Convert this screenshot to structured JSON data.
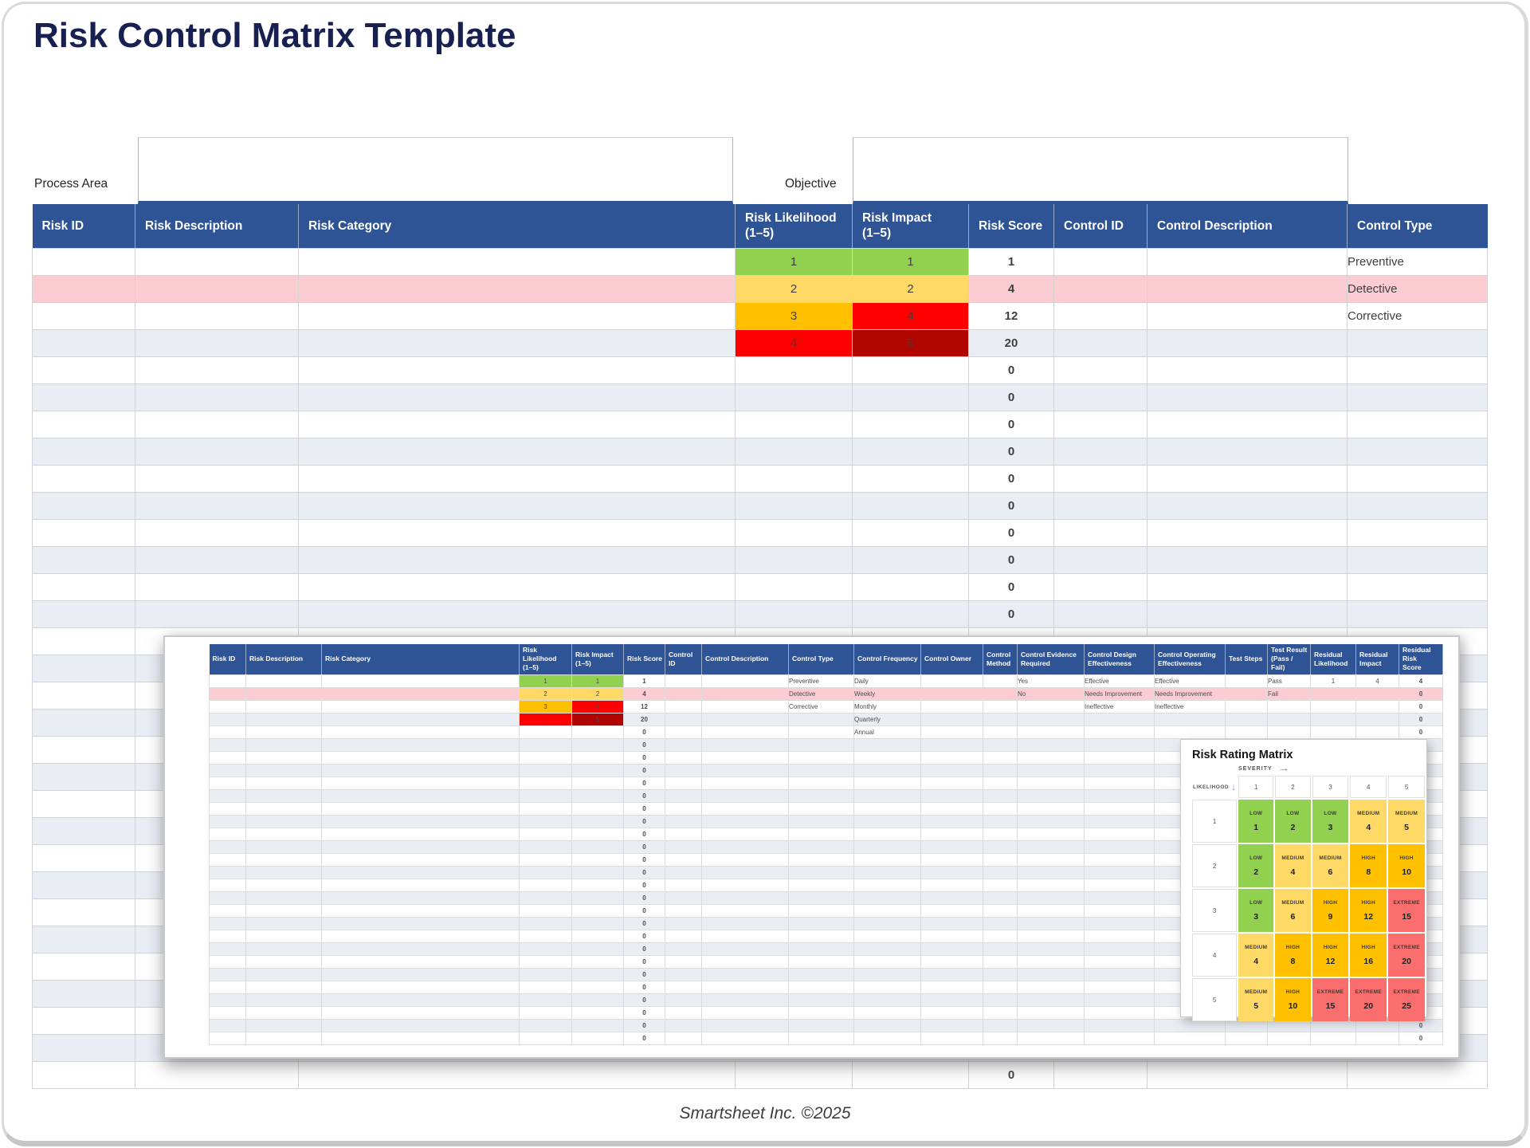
{
  "page": {
    "title": "Risk Control Matrix Template",
    "footer": "Smartsheet Inc. ©2025"
  },
  "form": {
    "process_area_label": "Process Area",
    "process_area_value": "",
    "objective_label": "Objective",
    "objective_value": ""
  },
  "colors": {
    "header_blue": "#2F5496",
    "accent_border_blue": "#2E5494",
    "title_navy": "#182051",
    "pink_row": "#FBCDD3",
    "alt_row": "#E9EDF4",
    "green": "#92D050",
    "yellow": "#FFD966",
    "amber": "#FFC000",
    "red": "#FE0000",
    "dark_red": "#B00500",
    "extreme_red": "#FA6E6E",
    "red_text": "#C00000"
  },
  "main_table": {
    "columns": [
      "Risk ID",
      "Risk Description",
      "Risk Category",
      "Risk Likelihood\n(1–5)",
      "Risk Impact\n(1–5)",
      "Risk Score",
      "Control ID",
      "Control Description",
      "Control Type"
    ],
    "rows": [
      {
        "likelihood": "1",
        "lik_color": "green",
        "impact": "1",
        "imp_color": "green",
        "score": "1",
        "control_type": "Preventive"
      },
      {
        "pink": true,
        "likelihood": "2",
        "lik_color": "yellow",
        "impact": "2",
        "imp_color": "yellow",
        "score": "4",
        "control_type": "Detective"
      },
      {
        "likelihood": "3",
        "lik_color": "amber",
        "impact": "4",
        "imp_color": "red",
        "score": "12",
        "control_type": "Corrective"
      },
      {
        "likelihood": "4",
        "lik_color": "red",
        "impact": "5",
        "imp_color": "darkred",
        "score": "20"
      },
      {
        "score": "0"
      },
      {
        "score": "0"
      },
      {
        "score": "0"
      },
      {
        "score": "0"
      },
      {
        "score": "0"
      },
      {
        "score": "0"
      },
      {
        "score": "0"
      },
      {
        "score": "0"
      },
      {
        "score": "0"
      },
      {
        "score": "0"
      },
      {
        "score": "0"
      },
      {
        "score": "0"
      },
      {
        "score": "0"
      },
      {
        "score": "0"
      },
      {
        "score": "0"
      },
      {
        "score": "0"
      },
      {
        "score": "0"
      },
      {
        "score": "0"
      },
      {
        "score": "0"
      },
      {
        "score": "0"
      },
      {
        "score": "0"
      },
      {
        "score": "0"
      },
      {
        "score": "0"
      },
      {
        "score": "0"
      },
      {
        "score": "0"
      },
      {
        "score": "0"
      },
      {
        "score": "0"
      }
    ]
  },
  "inset": {
    "columns": [
      "Risk ID",
      "Risk Description",
      "Risk Category",
      "Risk Likelihood\n(1–5)",
      "Risk Impact\n(1–5)",
      "Risk Score",
      "Control ID",
      "Control Description",
      "Control Type",
      "Control Frequency",
      "Control Owner",
      "Control\nMethod",
      "Control Evidence\nRequired",
      "Control Design\nEffectiveness",
      "Control Operating\nEffectiveness",
      "Test Steps",
      "Test Result\n(Pass / Fail)",
      "Residual\nLikelihood",
      "Residual\nImpact",
      "Residual Risk\nScore"
    ],
    "rows": [
      {
        "likelihood": "1",
        "lik_color": "green",
        "impact": "1",
        "imp_color": "green",
        "score": "1",
        "control_type": "Preventive",
        "control_frequency": "Daily",
        "evidence": "Yes",
        "design_eff": "Effective",
        "operating_eff": "Effective",
        "test_result": "Pass",
        "residual_likelihood": "1",
        "residual_impact": "4",
        "residual_score": "4"
      },
      {
        "pink": true,
        "likelihood": "2",
        "lik_color": "yellow",
        "impact": "2",
        "imp_color": "yellow",
        "score": "4",
        "control_type": "Detective",
        "control_frequency": "Weekly",
        "evidence": "No",
        "design_eff": "Needs Improvement",
        "operating_eff": "Needs Improvement",
        "test_result": "Fail",
        "residual_score": "0"
      },
      {
        "likelihood": "3",
        "lik_color": "amber",
        "impact": "4",
        "imp_color": "red",
        "score": "12",
        "control_type": "Corrective",
        "control_frequency": "Monthly",
        "design_eff": "Ineffective",
        "operating_eff": "Ineffective",
        "residual_score": "0"
      },
      {
        "likelihood": "4",
        "lik_color": "red",
        "impact": "5",
        "imp_color": "darkred",
        "score": "20",
        "control_frequency": "Quarterly",
        "residual_score": "0"
      },
      {
        "score": "0",
        "control_frequency": "Annual",
        "residual_score": "0"
      },
      {
        "score": "0",
        "residual_score": "0"
      },
      {
        "score": "0",
        "residual_score": "0"
      },
      {
        "score": "0",
        "residual_score": "0"
      },
      {
        "score": "0",
        "residual_score": "0"
      },
      {
        "score": "0",
        "residual_score": "0"
      },
      {
        "score": "0",
        "residual_score": "0"
      },
      {
        "score": "0",
        "residual_score": "0"
      },
      {
        "score": "0",
        "residual_score": "0"
      },
      {
        "score": "0",
        "residual_score": "0"
      },
      {
        "score": "0",
        "residual_score": "0"
      },
      {
        "score": "0",
        "residual_score": "0"
      },
      {
        "score": "0",
        "residual_score": "0"
      },
      {
        "score": "0",
        "residual_score": "0"
      },
      {
        "score": "0",
        "residual_score": "0"
      },
      {
        "score": "0",
        "residual_score": "0"
      },
      {
        "score": "0",
        "residual_score": "0"
      },
      {
        "score": "0",
        "residual_score": "0"
      },
      {
        "score": "0",
        "residual_score": "0"
      },
      {
        "score": "0",
        "residual_score": "0"
      },
      {
        "score": "0",
        "residual_score": "0"
      },
      {
        "score": "0",
        "residual_score": "0"
      },
      {
        "score": "0",
        "residual_score": "0"
      },
      {
        "score": "0",
        "residual_score": "0"
      },
      {
        "score": "0",
        "residual_score": "0"
      }
    ],
    "matrix": {
      "title": "Risk Rating Matrix",
      "severity_label": "SEVERITY",
      "likelihood_label": "LIKELIHOOD",
      "col_headers": [
        "1",
        "2",
        "3",
        "4",
        "5"
      ],
      "row_headers": [
        "1",
        "2",
        "3",
        "4",
        "5"
      ],
      "cells": [
        [
          [
            "LOW",
            "1",
            "low"
          ],
          [
            "LOW",
            "2",
            "low"
          ],
          [
            "LOW",
            "3",
            "low"
          ],
          [
            "MEDIUM",
            "4",
            "medium"
          ],
          [
            "MEDIUM",
            "5",
            "medium"
          ]
        ],
        [
          [
            "LOW",
            "2",
            "low"
          ],
          [
            "MEDIUM",
            "4",
            "medium"
          ],
          [
            "MEDIUM",
            "6",
            "medium"
          ],
          [
            "HIGH",
            "8",
            "high"
          ],
          [
            "HIGH",
            "10",
            "high"
          ]
        ],
        [
          [
            "LOW",
            "3",
            "low"
          ],
          [
            "MEDIUM",
            "6",
            "medium"
          ],
          [
            "HIGH",
            "9",
            "high"
          ],
          [
            "HIGH",
            "12",
            "high"
          ],
          [
            "EXTREME",
            "15",
            "extreme"
          ]
        ],
        [
          [
            "MEDIUM",
            "4",
            "medium"
          ],
          [
            "HIGH",
            "8",
            "high"
          ],
          [
            "HIGH",
            "12",
            "high"
          ],
          [
            "HIGH",
            "16",
            "high"
          ],
          [
            "EXTREME",
            "20",
            "extreme"
          ]
        ],
        [
          [
            "MEDIUM",
            "5",
            "medium"
          ],
          [
            "HIGH",
            "10",
            "high"
          ],
          [
            "EXTREME",
            "15",
            "extreme"
          ],
          [
            "EXTREME",
            "20",
            "extreme"
          ],
          [
            "EXTREME",
            "25",
            "extreme"
          ]
        ]
      ]
    }
  }
}
